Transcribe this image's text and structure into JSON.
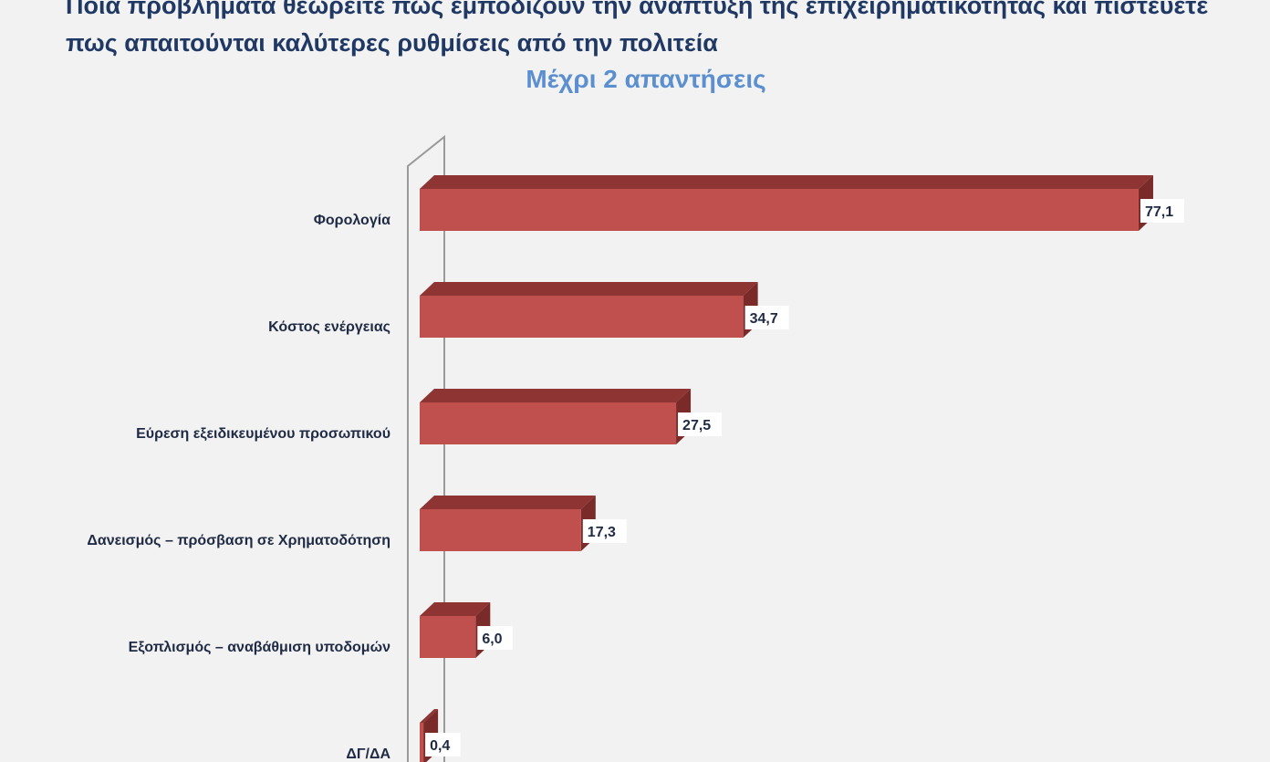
{
  "chart_data": {
    "type": "bar",
    "orientation": "horizontal",
    "title": "Ποια προβλήματα θεωρείτε πως εμποδίζουν την ανάπτυξη της επιχειρηματικότητας και πιστεύετε πως απαιτούνται καλύτερες ρυθμίσεις από την πολιτεία",
    "subtitle": "Μέχρι 2 απαντήσεις",
    "categories": [
      "Φορολογία",
      "Κόστος ενέργειας",
      "Εύρεση εξειδικευμένου προσωπικού",
      "Δανεισμός – πρόσβαση σε Χρηματοδότηση",
      "Εξοπλισμός – αναβάθμιση υποδομών",
      "ΔΓ/ΔΑ"
    ],
    "values": [
      77.1,
      34.7,
      27.5,
      17.3,
      6.0,
      0.4
    ],
    "value_labels": [
      "77,1",
      "34,7",
      "27,5",
      "17,3",
      "6,0",
      "0,4"
    ],
    "xlim": [
      0,
      80
    ],
    "grid": false,
    "legend": "none",
    "colors": {
      "bar_front": "#c0504d",
      "bar_top": "#8e3533",
      "bar_side": "#7a2b29",
      "title": "#1f3864",
      "subtitle": "#5b8fd0",
      "label_text": "#1f2a44"
    }
  }
}
